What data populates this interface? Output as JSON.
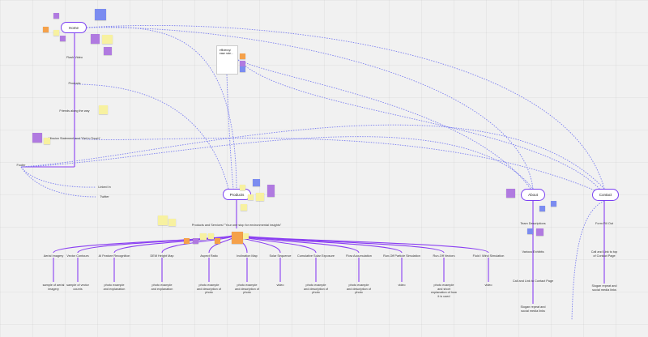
{
  "board": {
    "home_label": "Home",
    "products_label": "Products",
    "about_label": "About",
    "contact_label": "Contact",
    "note_card_text": "efficiency/ ease note..."
  },
  "home_items": [
    "Flash Video",
    "Products",
    "Friends along the way",
    "Mission Statement and \"Get In Touch\"",
    "Footer"
  ],
  "footer_items": [
    "Linked In",
    "Twitter"
  ],
  "products_header": "Products and Services! \"Your one stop for environmental insights\"",
  "product_items": [
    {
      "name": "Aerial Imagery",
      "desc": "sample of aerial imagery"
    },
    {
      "name": "Vector Contours",
      "desc": "sample of vector counts"
    },
    {
      "name": "AI Feature Recognition",
      "desc": "photo example and explanation"
    },
    {
      "name": "DEM Height Map",
      "desc": "photo example and explanation"
    },
    {
      "name": "Aspect Ratio",
      "desc": "photo example and description of photo"
    },
    {
      "name": "Inclination Map",
      "desc": "photo example and description of photo"
    },
    {
      "name": "Solar Sequence",
      "desc": "video"
    },
    {
      "name": "Cumulative Solar Exposure",
      "desc": "photo example and description of photo"
    },
    {
      "name": "Flow Accumulation",
      "desc": "photo example and description of photo"
    },
    {
      "name": "Run-Off Particle Simulation",
      "desc": "video"
    },
    {
      "name": "Run-Off Vectors",
      "desc": "photo example and short explanation of how it is used"
    },
    {
      "name": "Fluid / Wind Simulation",
      "desc": "video"
    }
  ],
  "about_items": [
    "Team Descriptions",
    "Various Exhibits",
    "Call and Link to Contact Page",
    "Slogan repeat and social media links"
  ],
  "contact_items": [
    "Form Fill Out",
    "Call and Link to top of Contact Page",
    "Slogan repeat and social media links"
  ],
  "colors": {
    "connector": "#8a3ff2",
    "dotted": "#7b7ff0",
    "sticky_orange": "#f5a14a",
    "sticky_purple": "#b07ae0",
    "sticky_yellow": "#f7f1a0",
    "sticky_blue": "#7b8cf0"
  }
}
